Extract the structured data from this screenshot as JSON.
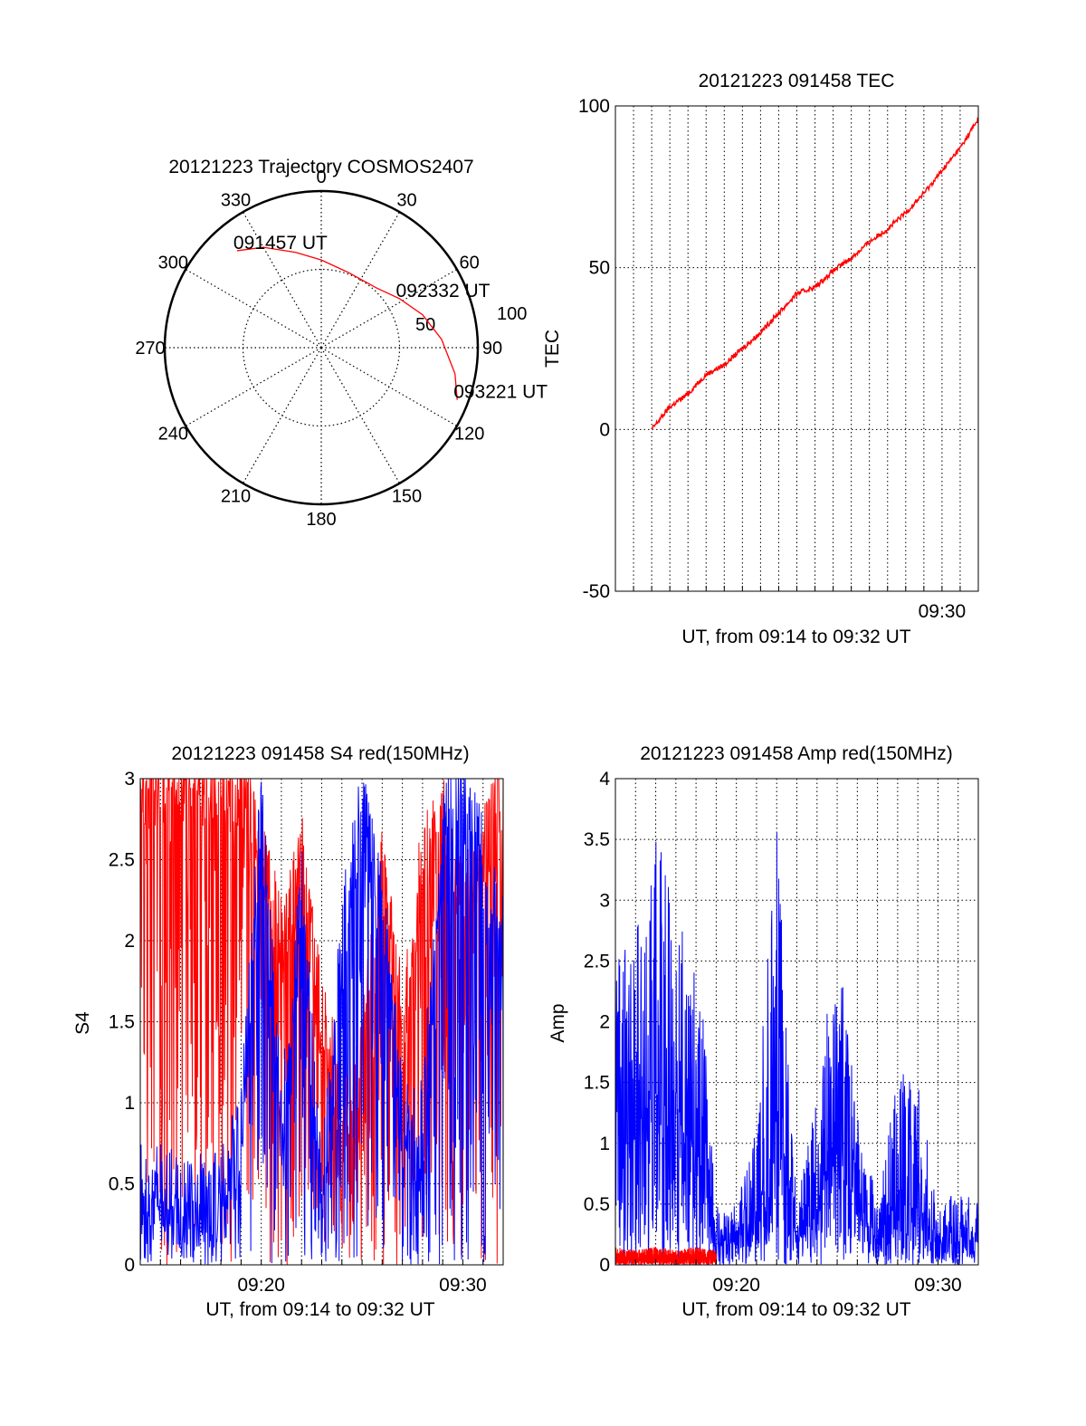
{
  "colors": {
    "red": "#ff0000",
    "blue": "#0000ff",
    "axis": "#000000"
  },
  "chart_data": [
    {
      "id": "polar",
      "type": "polar",
      "title": "20121223 Trajectory COSMOS2407",
      "angle_labels": [
        "0",
        "30",
        "60",
        "90",
        "120",
        "150",
        "180",
        "210",
        "240",
        "270",
        "300",
        "330"
      ],
      "radial_ticks": [
        "50",
        "100"
      ],
      "rmax": 100,
      "grid": true,
      "series": [
        {
          "color": "#ff0000",
          "points": [
            {
              "az": 319,
              "zen": 82
            },
            {
              "az": 330,
              "zen": 74
            },
            {
              "az": 345,
              "zen": 63
            },
            {
              "az": 0,
              "zen": 56
            },
            {
              "az": 20,
              "zen": 51
            },
            {
              "az": 43,
              "zen": 52
            },
            {
              "az": 58,
              "zen": 59
            },
            {
              "az": 72,
              "zen": 68
            },
            {
              "az": 86,
              "zen": 77
            },
            {
              "az": 101,
              "zen": 87
            },
            {
              "az": 111,
              "zen": 93
            }
          ]
        }
      ],
      "annotations": [
        {
          "text": "091457 UT",
          "az": 319,
          "zen": 82
        },
        {
          "text": "092332 UT",
          "az": 58,
          "zen": 59
        },
        {
          "text": "093221 UT",
          "az": 111,
          "zen": 93
        }
      ]
    },
    {
      "id": "tec",
      "type": "line",
      "title": "20121223 091458 TEC",
      "xlabel": "UT, from 09:14 to 09:32 UT",
      "ylabel": "TEC",
      "xlim": [
        "09:12",
        "09:32"
      ],
      "ylim": [
        -50,
        100
      ],
      "yticks": [
        "100",
        "50",
        "0",
        "-50"
      ],
      "xticks": [
        "09:30"
      ],
      "grid": true,
      "series": [
        {
          "color": "#ff0000",
          "x": [
            "09:14",
            "09:15",
            "09:16",
            "09:17",
            "09:18",
            "09:19",
            "09:20",
            "09:21",
            "09:22",
            "09:23",
            "09:24",
            "09:25",
            "09:26",
            "09:27",
            "09:28",
            "09:29",
            "09:30",
            "09:31",
            "09:32"
          ],
          "y": [
            0,
            7,
            11,
            17,
            20,
            25,
            30,
            36,
            42,
            44,
            49,
            53,
            58,
            62,
            67,
            73,
            80,
            87,
            96
          ]
        }
      ]
    },
    {
      "id": "s4",
      "type": "line",
      "title": "20121223 091458 S4 red(150MHz)",
      "xlabel": "UT, from 09:14 to 09:32 UT",
      "ylabel": "S4",
      "xlim": [
        "09:14",
        "09:32"
      ],
      "ylim": [
        0,
        3
      ],
      "yticks": [
        "0",
        "0.5",
        "1",
        "1.5",
        "2",
        "2.5",
        "3"
      ],
      "xticks": [
        "09:20",
        "09:30"
      ],
      "grid": true,
      "series": [
        {
          "color": "#ff0000",
          "x": [
            "09:14",
            "09:15",
            "09:16",
            "09:17",
            "09:18",
            "09:19",
            "09:20",
            "09:21",
            "09:22",
            "09:23",
            "09:24",
            "09:25",
            "09:26",
            "09:27",
            "09:28",
            "09:29",
            "09:30",
            "09:31",
            "09:32"
          ],
          "y": [
            3,
            3,
            3,
            3,
            3,
            3,
            2.5,
            2,
            2.5,
            1.5,
            1,
            1.3,
            2.5,
            1.5,
            2.5,
            2.8,
            2.2,
            2.5,
            3
          ]
        },
        {
          "color": "#0000ff",
          "x": [
            "09:14",
            "09:15",
            "09:16",
            "09:17",
            "09:18",
            "09:19",
            "09:20",
            "09:21",
            "09:22",
            "09:23",
            "09:24",
            "09:25",
            "09:26",
            "09:27",
            "09:28",
            "09:29",
            "09:30",
            "09:31",
            "09:32"
          ],
          "y": [
            0.45,
            0.45,
            0.42,
            0.4,
            0.4,
            0.8,
            2.8,
            0.8,
            2.3,
            0.4,
            2.0,
            2.8,
            2.2,
            0.9,
            0.85,
            2.7,
            2.9,
            2.5,
            2.0
          ]
        }
      ]
    },
    {
      "id": "amp",
      "type": "line",
      "title": "20121223 091458 Amp red(150MHz)",
      "xlabel": "UT, from 09:14 to 09:32 UT",
      "ylabel": "Amp",
      "xlim": [
        "09:14",
        "09:32"
      ],
      "ylim": [
        0,
        4
      ],
      "yticks": [
        "0",
        "0.5",
        "1",
        "1.5",
        "2",
        "2.5",
        "3",
        "3.5",
        "4"
      ],
      "xticks": [
        "09:20",
        "09:30"
      ],
      "grid": true,
      "series": [
        {
          "color": "#0000ff",
          "x": [
            "09:14",
            "09:15",
            "09:16",
            "09:17",
            "09:18",
            "09:19",
            "09:20",
            "09:21",
            "09:22",
            "09:23",
            "09:24",
            "09:25",
            "09:26",
            "09:27",
            "09:28",
            "09:29",
            "09:30",
            "09:31",
            "09:32"
          ],
          "y": [
            2.6,
            2.7,
            3.8,
            2.8,
            3.0,
            0.5,
            0.5,
            1.2,
            3.6,
            0.5,
            1.4,
            2.9,
            1.3,
            0.5,
            1.6,
            1.5,
            0.5,
            0.6,
            0.6
          ]
        },
        {
          "color": "#ff0000",
          "x": [
            "09:14",
            "09:15",
            "09:16",
            "09:17",
            "09:18",
            "09:19"
          ],
          "y": [
            0.15,
            0.12,
            0.15,
            0.12,
            0.15,
            0.12
          ]
        }
      ]
    }
  ]
}
